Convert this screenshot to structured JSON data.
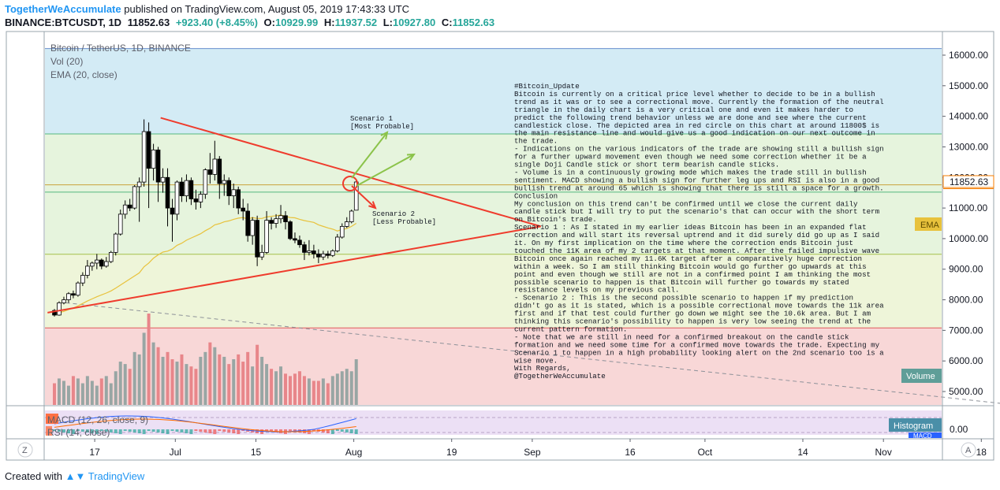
{
  "header": {
    "author": "TogetherWeAccumulate",
    "published": "published on TradingView.com, August 05, 2019 17:43:33 UTC",
    "symbol": "BINANCE:BTCUSDT, 1D",
    "last": "11852.63",
    "change": "+923.40 (+8.45%)",
    "o_label": "O:",
    "o_value": "10929.99",
    "h_label": "H:",
    "h_value": "11937.52",
    "l_label": "L:",
    "l_value": "10927.80",
    "c_label": "C:",
    "c_value": "11852.63"
  },
  "legend": {
    "main": "Bitcoin / TetherUS, 1D, BINANCE",
    "vol": "Vol (20)",
    "ema": "EMA (20, close)",
    "macd": "MACD (12, 26, close, 9)",
    "rsi": "RSI (14, close)"
  },
  "annotations": {
    "scenario1_line1": "Scenario 1",
    "scenario1_line2": "[Most Probable]",
    "scenario2_line1": "Scenario 2",
    "scenario2_line2": "[Less Probable]"
  },
  "note_lines": [
    "#Bitcoin_Update",
    "Bitcoin is currently on a critical price level whether to decide to be in a bullish",
    "trend as it was or to see a correctional move. Currently the formation of the neutral",
    "triangle in the daily chart is a very critical one and even it makes harder to",
    "predict the following trend behavior unless we are done and see where the current",
    "candlestick close. The depicted area in red circle on this chart at around 11800$ is",
    "the main resistance line and would give us a good indication on our next outcome in",
    "the trade.",
    "- Indications on the various indicators of the trade are showing still a bullish sign",
    "for a further upward movement even though we need some correction whether it be a",
    "single Doji Candle stick or short term bearish candle sticks.",
    "- Volume is in a continuously growing mode which makes the trade still in bullish",
    "sentiment. MACD showing a bullish sign for further leg ups and RSI is also in a good",
    "bullish trend at around 65 which is showing that there is still a space for a growth.",
    "Conclusion",
    "My conclusion on this trend can't be confirmed until we close the current daily",
    "candle stick but I will try to put the scenario's that can occur with the short term",
    "on Bitcoin's trade.",
    "Scenario 1 : As I stated in my earlier ideas Bitcoin has been in an expanded flat",
    "correction and will start its reversal uptrend and it did surely did go up as I said",
    "it. On my first implication on the time where the correction ends Bitcoin just",
    "touched the 11K area of my 2 targets at that moment. After the failed impulsive wave",
    "Bitcoin once again reached my 11.6K target after a comparatively huge correction",
    "within a week. So I am still thinking Bitcoin would go further go upwards at this",
    "point and even though we still are not in a confirmed point I am thinking the most",
    "possible scenario to happen is that Bitcoin will further go towards my stated",
    "resistance levels on my previous call.",
    "- Scenario 2 :  This is the second possible scenario to happen if my prediction",
    "didn't go as it is stated, which is a possible correctional move towards the 11k area",
    "first and if that test could further go down we might see the 10.6k area. But I am",
    "thinking this scenario's possibility to happen is very low seeing the trend at the",
    "current pattern formation.",
    "- Note that we are still in need for a confirmed breakout on the candle stick",
    "formation and we need some time for a confirmed move towards the trade. Expecting my",
    "Scenario 1 to happen in a high probability looking alert on the 2nd scenario too is a",
    "wise move.",
    "With Regards,",
    "@TogetherWeAccumulate"
  ],
  "badges": {
    "last_price": "11852.63",
    "ema": "EMA",
    "volume": "Volume",
    "histogram": "Histogram",
    "macd_cut": "MACD",
    "macd_zero": "0.00"
  },
  "footer": {
    "created_with": "Created with",
    "brand": "TradingView"
  },
  "scale_buttons": {
    "left": "Z",
    "right": "A"
  },
  "colors": {
    "up": "#26a69a",
    "down": "#ef5350",
    "candle": "#000000",
    "ema": "#e8c23c",
    "trend": "#ef3b2c",
    "arrow": "#8bc34a",
    "zone_blue": "#d3ebf5",
    "zone_green": "#e6f4dd",
    "zone_red": "#f8d7d7"
  },
  "chart_data": {
    "type": "candlestick",
    "symbol": "BINANCE:BTCUSDT",
    "timeframe": "1D",
    "y_ticks": [
      5000,
      6000,
      7000,
      8000,
      9000,
      10000,
      11000,
      12000,
      13000,
      14000,
      15000,
      16000
    ],
    "y_tick_labels": [
      "5000.00",
      "6000.00",
      "7000.00",
      "8000.00",
      "9000.00",
      "10000.00",
      "11000.00",
      "12000.00",
      "13000.00",
      "14000.00",
      "15000.00",
      "16000.00"
    ],
    "ylim": [
      4550,
      16400
    ],
    "x_tick_labels": [
      "17",
      "Jul",
      "15",
      "Aug",
      "19",
      "Sep",
      "16",
      "Oct",
      "14",
      "Nov",
      "18"
    ],
    "x_tick_days": [
      17,
      31,
      45,
      62,
      79,
      93,
      110,
      123,
      140,
      154,
      171
    ],
    "x_range_days": [
      10,
      180
    ],
    "x_day_origin": "2019-06-01",
    "candles": [
      {
        "o": 7650,
        "h": 7700,
        "l": 7450,
        "c": 7500
      },
      {
        "o": 7500,
        "h": 7950,
        "l": 7480,
        "c": 7900
      },
      {
        "o": 7900,
        "h": 8100,
        "l": 7850,
        "c": 8000
      },
      {
        "o": 8000,
        "h": 8250,
        "l": 7900,
        "c": 8200
      },
      {
        "o": 8200,
        "h": 8300,
        "l": 8050,
        "c": 8150
      },
      {
        "o": 8150,
        "h": 8600,
        "l": 8100,
        "c": 8550
      },
      {
        "o": 8550,
        "h": 8900,
        "l": 8450,
        "c": 8800
      },
      {
        "o": 8800,
        "h": 9300,
        "l": 8700,
        "c": 9100
      },
      {
        "o": 9100,
        "h": 9250,
        "l": 8950,
        "c": 9200
      },
      {
        "o": 9200,
        "h": 9500,
        "l": 9000,
        "c": 9300
      },
      {
        "o": 9300,
        "h": 9350,
        "l": 9000,
        "c": 9100
      },
      {
        "o": 9100,
        "h": 9400,
        "l": 9050,
        "c": 9250
      },
      {
        "o": 9250,
        "h": 9600,
        "l": 9200,
        "c": 9550
      },
      {
        "o": 9550,
        "h": 10200,
        "l": 9450,
        "c": 10150
      },
      {
        "o": 10150,
        "h": 10950,
        "l": 10100,
        "c": 10800
      },
      {
        "o": 10800,
        "h": 11250,
        "l": 10650,
        "c": 11100
      },
      {
        "o": 11100,
        "h": 11300,
        "l": 10900,
        "c": 11000
      },
      {
        "o": 11000,
        "h": 11750,
        "l": 10950,
        "c": 11700
      },
      {
        "o": 11700,
        "h": 12000,
        "l": 10550,
        "c": 11850
      },
      {
        "o": 11850,
        "h": 13900,
        "l": 11700,
        "c": 13500
      },
      {
        "o": 13500,
        "h": 13800,
        "l": 11000,
        "c": 12300
      },
      {
        "o": 12300,
        "h": 13100,
        "l": 11900,
        "c": 12900
      },
      {
        "o": 12900,
        "h": 13000,
        "l": 11200,
        "c": 11850
      },
      {
        "o": 11850,
        "h": 12300,
        "l": 11500,
        "c": 12000
      },
      {
        "o": 12000,
        "h": 12300,
        "l": 10400,
        "c": 11000
      },
      {
        "o": 11000,
        "h": 11300,
        "l": 9900,
        "c": 10800
      },
      {
        "o": 10800,
        "h": 11900,
        "l": 10600,
        "c": 11850
      },
      {
        "o": 11850,
        "h": 12000,
        "l": 11200,
        "c": 11400
      },
      {
        "o": 11400,
        "h": 12100,
        "l": 11200,
        "c": 11900
      },
      {
        "o": 11900,
        "h": 12000,
        "l": 11100,
        "c": 11300
      },
      {
        "o": 11300,
        "h": 11600,
        "l": 10950,
        "c": 11200
      },
      {
        "o": 11200,
        "h": 11550,
        "l": 11000,
        "c": 11450
      },
      {
        "o": 11450,
        "h": 12300,
        "l": 11300,
        "c": 12250
      },
      {
        "o": 12250,
        "h": 12800,
        "l": 11800,
        "c": 12100
      },
      {
        "o": 12100,
        "h": 13200,
        "l": 11900,
        "c": 12600
      },
      {
        "o": 12600,
        "h": 12700,
        "l": 11300,
        "c": 11800
      },
      {
        "o": 11800,
        "h": 12100,
        "l": 11400,
        "c": 11900
      },
      {
        "o": 11900,
        "h": 12000,
        "l": 11100,
        "c": 11400
      },
      {
        "o": 11400,
        "h": 11800,
        "l": 11000,
        "c": 11600
      },
      {
        "o": 11600,
        "h": 11700,
        "l": 10800,
        "c": 11000
      },
      {
        "o": 11000,
        "h": 11300,
        "l": 10600,
        "c": 10900
      },
      {
        "o": 10900,
        "h": 11150,
        "l": 9900,
        "c": 10100
      },
      {
        "o": 10100,
        "h": 10700,
        "l": 9800,
        "c": 10600
      },
      {
        "o": 10600,
        "h": 10750,
        "l": 9100,
        "c": 9400
      },
      {
        "o": 9400,
        "h": 9800,
        "l": 9300,
        "c": 9550
      },
      {
        "o": 9550,
        "h": 10900,
        "l": 9500,
        "c": 10600
      },
      {
        "o": 10600,
        "h": 10700,
        "l": 10300,
        "c": 10500
      },
      {
        "o": 10500,
        "h": 10800,
        "l": 10350,
        "c": 10650
      },
      {
        "o": 10650,
        "h": 11100,
        "l": 10500,
        "c": 10750
      },
      {
        "o": 10750,
        "h": 10900,
        "l": 10300,
        "c": 10550
      },
      {
        "o": 10550,
        "h": 10600,
        "l": 9950,
        "c": 10000
      },
      {
        "o": 10000,
        "h": 10200,
        "l": 9850,
        "c": 9950
      },
      {
        "o": 9950,
        "h": 10100,
        "l": 9700,
        "c": 9800
      },
      {
        "o": 9800,
        "h": 9900,
        "l": 9300,
        "c": 9550
      },
      {
        "o": 9550,
        "h": 9950,
        "l": 9450,
        "c": 9600
      },
      {
        "o": 9600,
        "h": 9800,
        "l": 9350,
        "c": 9500
      },
      {
        "o": 9500,
        "h": 9650,
        "l": 9200,
        "c": 9400
      },
      {
        "o": 9400,
        "h": 9600,
        "l": 9300,
        "c": 9500
      },
      {
        "o": 9500,
        "h": 9600,
        "l": 9350,
        "c": 9450
      },
      {
        "o": 9450,
        "h": 9650,
        "l": 9400,
        "c": 9600
      },
      {
        "o": 9600,
        "h": 10150,
        "l": 9550,
        "c": 10050
      },
      {
        "o": 10050,
        "h": 10500,
        "l": 10000,
        "c": 10400
      },
      {
        "o": 10400,
        "h": 10700,
        "l": 10350,
        "c": 10550
      },
      {
        "o": 10550,
        "h": 10950,
        "l": 10500,
        "c": 10900
      },
      {
        "o": 10929.99,
        "h": 11937.52,
        "l": 10927.8,
        "c": 11852.63
      }
    ],
    "volume": [
      9,
      11,
      10,
      8,
      12,
      11,
      9,
      12,
      10,
      8,
      11,
      12,
      9,
      14,
      18,
      17,
      15,
      22,
      21,
      30,
      38,
      26,
      24,
      20,
      22,
      19,
      18,
      21,
      17,
      16,
      15,
      20,
      22,
      26,
      24,
      21,
      20,
      17,
      19,
      21,
      18,
      22,
      16,
      25,
      20,
      17,
      15,
      14,
      16,
      13,
      12,
      13,
      14,
      12,
      11,
      10,
      10,
      11,
      9,
      12,
      13,
      14,
      15,
      14,
      19
    ],
    "ema_20": [
      7540,
      7580,
      7620,
      7680,
      7730,
      7800,
      7880,
      7960,
      8030,
      8100,
      8160,
      8220,
      8290,
      8380,
      8480,
      8580,
      8680,
      8780,
      8880,
      9080,
      9200,
      9360,
      9470,
      9560,
      9590,
      9660,
      9780,
      9850,
      9950,
      10020,
      10090,
      10160,
      10260,
      10340,
      10450,
      10490,
      10550,
      10580,
      10630,
      10670,
      10690,
      10640,
      10690,
      10660,
      10660,
      10710,
      10730,
      10750,
      10770,
      10730,
      10690,
      10680,
      10630,
      10590,
      10560,
      10530,
      10450,
      10400,
      10350,
      10310,
      10250,
      10300,
      10330,
      10400,
      10500
    ],
    "levels": [
      16215,
      13425,
      11760,
      11520,
      9490,
      7080
    ],
    "triangle": {
      "top": {
        "start_day": 29,
        "start_price": 13950,
        "end_day": 89,
        "end_price": 10400
      },
      "bottom": {
        "start_day": 11,
        "start_price": 7580,
        "end_day": 89,
        "end_price": 10400
      }
    },
    "circle": {
      "day": 74,
      "price": 11800
    },
    "scenario_arrows": [
      {
        "from_day": 74.5,
        "from_price": 11900,
        "to_day": 82,
        "to_price": 13550
      },
      {
        "from_day": 76,
        "from_price": 11850,
        "to_day": 85,
        "to_price": 12850
      },
      {
        "from_day": 74,
        "from_price": 11780,
        "to_day": 78,
        "to_price": 10960
      }
    ],
    "dashed_line": {
      "start_day": 12,
      "start_price": 7900,
      "end_day": 175,
      "end_price": 4600
    }
  }
}
